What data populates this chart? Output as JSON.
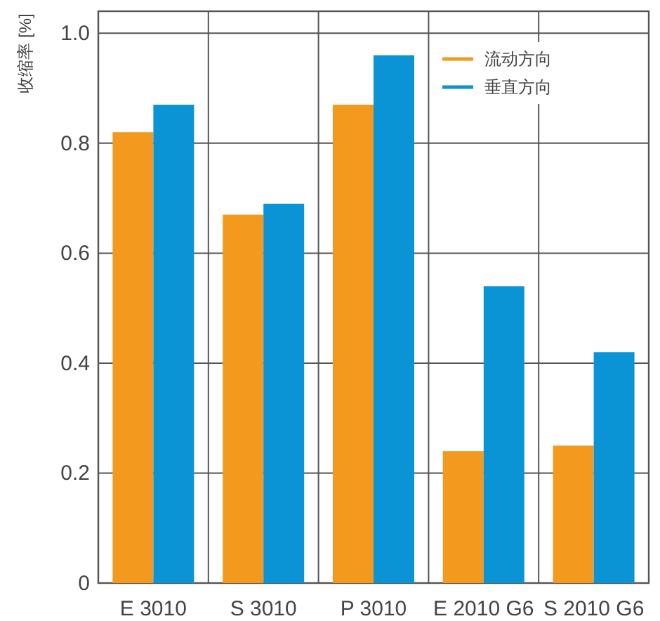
{
  "chart_data": {
    "type": "bar",
    "ylabel": "收缩率 [%]",
    "categories": [
      "E 3010",
      "S 3010",
      "P 3010",
      "E 2010 G6",
      "S 2010 G6"
    ],
    "series": [
      {
        "name": "流动方向",
        "color": "#f39a1e",
        "values": [
          0.82,
          0.67,
          0.87,
          0.24,
          0.25
        ]
      },
      {
        "name": "垂直方向",
        "color": "#0a94d6",
        "values": [
          0.87,
          0.69,
          0.96,
          0.54,
          0.42
        ]
      }
    ],
    "ylim": [
      0,
      1.04
    ],
    "yticks": [
      0,
      0.2,
      0.4,
      0.6,
      0.8,
      {
        "value": 1,
        "label": "1.0"
      }
    ],
    "grid": true,
    "legend": "top right"
  }
}
